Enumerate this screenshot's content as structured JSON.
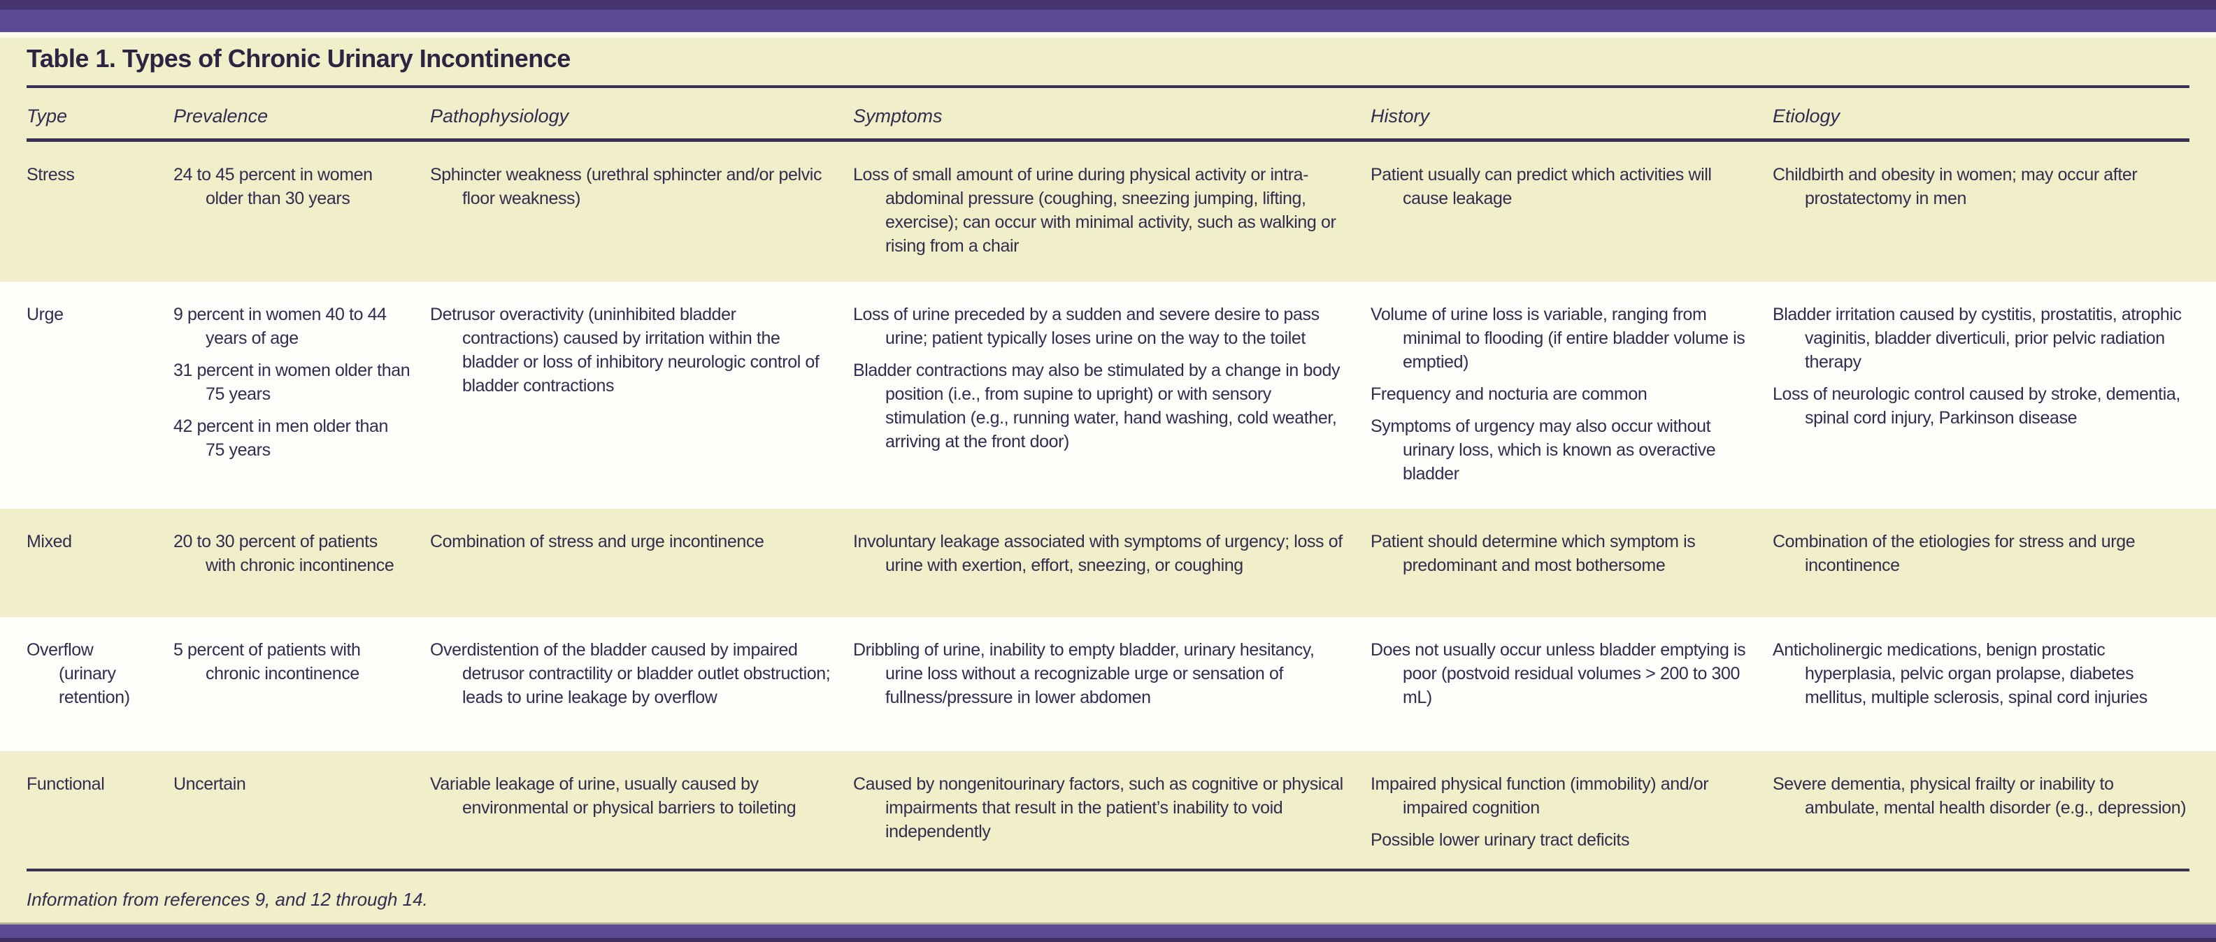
{
  "title": "Table 1. Types of Chronic Urinary Incontinence",
  "columns": [
    "Type",
    "Prevalence",
    "Pathophysiology",
    "Symptoms",
    "History",
    "Etiology"
  ],
  "rows": [
    {
      "type": "Stress",
      "shaded": true,
      "prevalence": [
        "24 to 45 percent in women older than 30 years"
      ],
      "pathophysiology": [
        "Sphincter weakness (urethral sphincter and/or pelvic floor weakness)"
      ],
      "symptoms": [
        "Loss of small amount of urine during physical activity or intra-abdominal pressure (coughing, sneezing jumping, lifting, exercise); can occur with minimal activity, such as walking or rising from a chair"
      ],
      "history": [
        "Patient usually can predict which activities will cause leakage"
      ],
      "etiology": [
        "Childbirth and obesity in women; may occur after prostatectomy in men"
      ]
    },
    {
      "type": "Urge",
      "shaded": false,
      "prevalence": [
        "9 percent in women 40 to 44 years of age",
        "31 percent in women older than 75 years",
        "42 percent in men older than 75 years"
      ],
      "pathophysiology": [
        "Detrusor overactivity (uninhibited bladder contractions) caused by irritation within the bladder or loss of inhibitory neurologic control of bladder contractions"
      ],
      "symptoms": [
        "Loss of urine preceded by a sudden and severe desire to pass urine; patient typically loses urine on the way to the toilet",
        "Bladder contractions may also be stimulated by a change in body position (i.e., from supine to upright) or with sensory stimulation (e.g., running water, hand washing, cold weather, arriving at the front door)"
      ],
      "history": [
        "Volume of urine loss is variable, ranging from minimal to flooding (if entire bladder volume is emptied)",
        "Frequency and nocturia are common",
        "Symptoms of urgency may also occur without urinary loss, which is known as overactive bladder"
      ],
      "etiology": [
        "Bladder irritation caused by cystitis, prostatitis, atrophic vaginitis, bladder diverticuli, prior pelvic radiation therapy",
        "Loss of neurologic control caused by stroke, dementia, spinal cord injury, Parkinson disease"
      ]
    },
    {
      "type": "Mixed",
      "shaded": true,
      "prevalence": [
        "20 to 30 percent of patients with chronic incontinence"
      ],
      "pathophysiology": [
        "Combination of stress and urge incontinence"
      ],
      "symptoms": [
        "Involuntary leakage associated with symptoms of urgency; loss of urine with exertion, effort, sneezing, or coughing"
      ],
      "history": [
        "Patient should determine which symptom is predominant and most bothersome"
      ],
      "etiology": [
        "Combination of the etiologies for stress and urge incontinence"
      ]
    },
    {
      "type": "Overflow (urinary retention)",
      "shaded": false,
      "prevalence": [
        "5 percent of patients with chronic incontinence"
      ],
      "pathophysiology": [
        "Overdistention of the bladder caused by impaired detrusor contractility or bladder outlet obstruction; leads to urine leakage by overflow"
      ],
      "symptoms": [
        "Dribbling of urine, inability to empty bladder, urinary hesitancy, urine loss without a recognizable urge or sensation of fullness/pressure in lower abdomen"
      ],
      "history": [
        "Does not usually occur unless bladder emptying is poor (postvoid residual volumes > 200 to 300 mL)"
      ],
      "etiology": [
        "Anticholinergic medications, benign prostatic hyperplasia, pelvic organ prolapse, diabetes mellitus, multiple sclerosis, spinal cord injuries"
      ]
    },
    {
      "type": "Functional",
      "shaded": true,
      "prevalence": [
        "Uncertain"
      ],
      "pathophysiology": [
        "Variable leakage of urine, usually caused by environmental or physical barriers to toileting"
      ],
      "symptoms": [
        "Caused by nongenitourinary factors, such as cognitive or physical impairments that result in the patient’s inability to void independently"
      ],
      "history": [
        "Impaired physical function (immobility) and/or impaired cognition",
        "Possible lower urinary tract deficits"
      ],
      "etiology": [
        "Severe dementia, physical frailty or inability to ambulate, mental health disorder (e.g., depression)"
      ]
    }
  ],
  "footnote": "Information from references 9, and 12 through 14.",
  "colors": {
    "banner_purple": "#5b4a94",
    "banner_purple_dark": "#46356f",
    "sheet_yellow": "#f1efc9",
    "row_white": "#fdfdfa",
    "rule": "#3b3158",
    "text": "#322c50"
  }
}
